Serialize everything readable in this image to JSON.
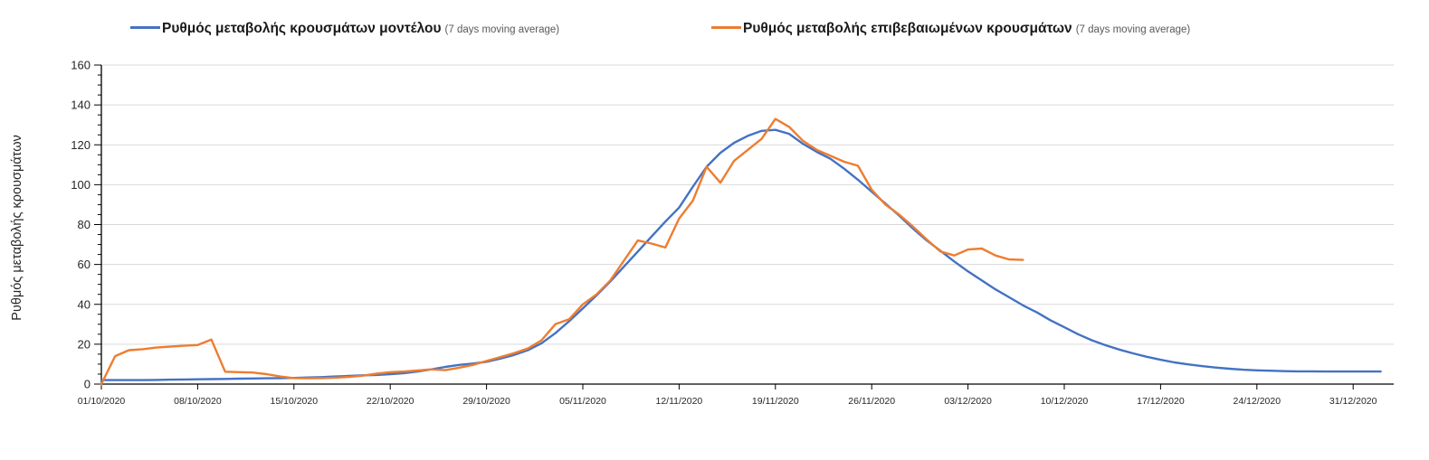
{
  "legend": [
    {
      "label": "Ρυθμός μεταβολής κρουσμάτων μοντέλου",
      "suffix": "(7 days moving average)",
      "color": "#4472C4"
    },
    {
      "label": "Ρυθμός μεταβολής επιβεβαιωμένων κρουσμάτων",
      "suffix": "(7 days moving average)",
      "color": "#ED7D31"
    }
  ],
  "colors": {
    "grid": "#D9D9D9",
    "axis": "#000000",
    "tick_text": "#262626",
    "muted_text": "#595959"
  },
  "chart_data": {
    "type": "line",
    "title": "",
    "xlabel": "",
    "ylabel": "Ρυθμός μεταβολής κρουσμάτων",
    "ylim": [
      0,
      160
    ],
    "y_ticks": [
      0,
      20,
      40,
      60,
      80,
      100,
      120,
      140,
      160
    ],
    "y_minor_tick_step": 5,
    "grid": "horizontal",
    "legend_position": "top",
    "x_start_date": "01/10/2020",
    "x_tick_interval_days": 7,
    "x_tick_labels": [
      "01/10/2020",
      "08/10/2020",
      "15/10/2020",
      "22/10/2020",
      "29/10/2020",
      "05/11/2020",
      "12/11/2020",
      "19/11/2020",
      "26/11/2020",
      "03/12/2020",
      "10/12/2020",
      "17/12/2020",
      "24/12/2020",
      "31/12/2020"
    ],
    "series": [
      {
        "name": "Ρυθμός μεταβολής κρουσμάτων μοντέλου (7 days moving average)",
        "color": "#4472C4",
        "start_day": 0,
        "step_days": 1,
        "values": [
          2.0,
          2.0,
          2.0,
          2.0,
          2.1,
          2.2,
          2.3,
          2.4,
          2.5,
          2.6,
          2.7,
          2.8,
          2.9,
          3.0,
          3.1,
          3.3,
          3.5,
          3.8,
          4.1,
          4.4,
          4.6,
          5.0,
          5.5,
          6.3,
          7.4,
          8.6,
          9.6,
          10.3,
          11.2,
          12.8,
          14.6,
          17.0,
          20.5,
          25.5,
          31.5,
          38.0,
          44.5,
          51.5,
          59.0,
          66.5,
          74.0,
          81.5,
          88.5,
          99.0,
          109.0,
          116.0,
          121.0,
          124.5,
          127.0,
          127.5,
          125.5,
          120.5,
          116.5,
          113.0,
          108.0,
          102.5,
          96.5,
          90.5,
          84.5,
          78.0,
          72.0,
          66.8,
          61.5,
          56.5,
          52.0,
          47.5,
          43.5,
          39.5,
          36.0,
          32.0,
          28.5,
          25.0,
          22.0,
          19.5,
          17.3,
          15.4,
          13.7,
          12.2,
          10.9,
          9.9,
          9.0,
          8.3,
          7.7,
          7.2,
          6.9,
          6.7,
          6.5,
          6.4,
          6.4,
          6.3,
          6.3,
          6.3,
          6.3,
          6.3
        ]
      },
      {
        "name": "Ρυθμός μεταβολής επιβεβαιωμένων κρουσμάτων (7 days moving average)",
        "color": "#ED7D31",
        "start_day": 0,
        "step_days": 1,
        "values": [
          0,
          14.0,
          17.0,
          17.5,
          18.3,
          18.8,
          19.2,
          19.6,
          22.3,
          6.2,
          6.0,
          5.8,
          5.0,
          3.8,
          3.0,
          2.9,
          3.0,
          3.2,
          3.6,
          4.2,
          5.2,
          6.0,
          6.3,
          6.8,
          7.4,
          7.0,
          8.2,
          9.6,
          11.6,
          13.5,
          15.5,
          17.8,
          22.0,
          30.0,
          32.5,
          40.0,
          45.0,
          52.0,
          62.0,
          72.0,
          70.5,
          68.5,
          83.0,
          92.0,
          109.0,
          101.0,
          112.0,
          117.5,
          123.0,
          133.0,
          129.0,
          122.0,
          117.5,
          114.5,
          111.5,
          109.5,
          97.5,
          90.0,
          85.0,
          79.0,
          72.5,
          66.5,
          64.5,
          67.5,
          68.0,
          64.5,
          62.5,
          62.3
        ]
      }
    ]
  }
}
